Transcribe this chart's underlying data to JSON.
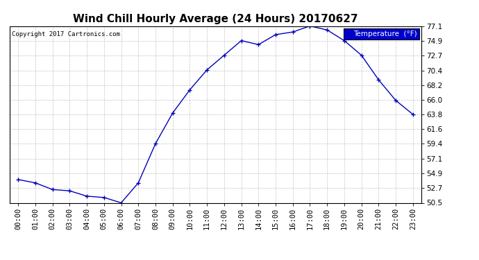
{
  "title": "Wind Chill Hourly Average (24 Hours) 20170627",
  "copyright": "Copyright 2017 Cartronics.com",
  "legend_label": "Temperature  (°F)",
  "x_labels": [
    "00:00",
    "01:00",
    "02:00",
    "03:00",
    "04:00",
    "05:00",
    "06:00",
    "07:00",
    "08:00",
    "09:00",
    "10:00",
    "11:00",
    "12:00",
    "13:00",
    "14:00",
    "15:00",
    "16:00",
    "17:00",
    "18:00",
    "19:00",
    "20:00",
    "21:00",
    "22:00",
    "23:00"
  ],
  "y_values": [
    54.0,
    53.5,
    52.5,
    52.3,
    51.5,
    51.3,
    50.5,
    53.5,
    59.4,
    64.0,
    67.5,
    70.5,
    72.7,
    74.9,
    74.3,
    75.8,
    76.2,
    77.1,
    76.5,
    74.9,
    72.7,
    69.0,
    65.9,
    63.8
  ],
  "ylim": [
    50.5,
    77.1
  ],
  "yticks": [
    50.5,
    52.7,
    54.9,
    57.1,
    59.4,
    61.6,
    63.8,
    66.0,
    68.2,
    70.4,
    72.7,
    74.9,
    77.1
  ],
  "line_color": "#0000bb",
  "marker": "+",
  "marker_color": "#0000bb",
  "background_color": "#ffffff",
  "grid_color": "#aaaaaa",
  "title_fontsize": 11,
  "copyright_fontsize": 6.5,
  "tick_fontsize": 7.5,
  "legend_bg": "#0000cc",
  "legend_text_color": "#ffffff",
  "fig_width": 6.9,
  "fig_height": 3.75,
  "dpi": 100
}
